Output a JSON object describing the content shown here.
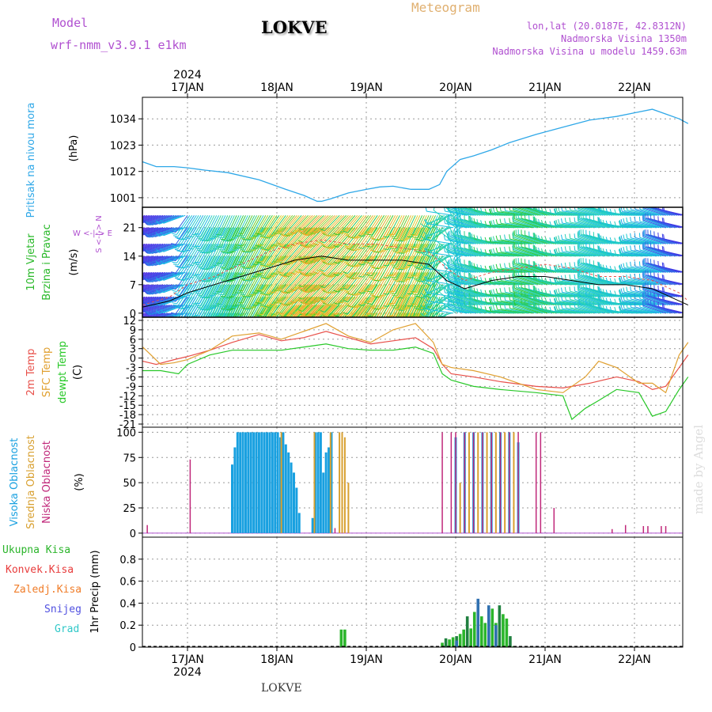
{
  "header": {
    "model_label": "Model",
    "model_name": "wrf-nmm_v3.9.1 e1km",
    "station": "LOKVE",
    "meteogram": "Meteogram",
    "lonlat": "lon,lat (20.0187E, 42.8312N)",
    "altitude": "Nadmorska Visina 1350m",
    "model_altitude": "Nadmorska Visina u modelu 1459.63m",
    "footer_station": "LOKVE",
    "watermark": "made by Angel",
    "top_year": "2024",
    "bottom_year": "2024",
    "day_labels": [
      "17JAN",
      "18JAN",
      "19JAN",
      "20JAN",
      "21JAN",
      "22JAN"
    ]
  },
  "colors": {
    "pressure": "#2fa8e8",
    "temp2m": "#e8504a",
    "sfc_temp": "#e0a030",
    "dewpoint": "#28c828",
    "high_cloud": "#18a0e0",
    "mid_cloud": "#d8a030",
    "low_cloud": "#c0287a",
    "total_precip": "#2bb52b",
    "conv_precip": "#e83c3c",
    "frozen_precip": "#f07c28",
    "snow": "#5050e0",
    "graupel": "#30c8c8",
    "label_purple": "#b050d0",
    "meteogram_label": "#e0b070"
  },
  "chart_data": [
    {
      "type": "line",
      "panel": "pressure",
      "ylabel_1": "Pritisak na nivou mora",
      "ylabel_2": "(hPa)",
      "yticks": [
        1001,
        1012,
        1023,
        1034
      ],
      "ylim": [
        997,
        1043
      ],
      "x_unit": "days from 17JAN 00 UTC",
      "series": [
        {
          "x": [
            -0.5,
            -0.35,
            -0.15,
            0.0,
            0.2,
            0.45,
            0.8,
            1.1,
            1.3,
            1.45,
            1.5,
            1.6,
            1.8,
            2.0,
            2.15,
            2.3,
            2.5,
            2.7,
            2.82,
            2.9,
            3.05,
            3.2,
            3.4,
            3.6,
            3.9,
            4.2,
            4.5,
            4.8,
            5.0,
            5.2,
            5.35,
            5.5,
            5.6
          ],
          "values": [
            1016,
            1014,
            1014,
            1013.5,
            1012.5,
            1011.5,
            1008.5,
            1004.5,
            1002,
            999.5,
            999.5,
            1000.5,
            1003,
            1004.5,
            1005.5,
            1005.8,
            1004.5,
            1004.5,
            1006.5,
            1012,
            1017,
            1018.5,
            1021,
            1024,
            1027.5,
            1030.5,
            1033.5,
            1035,
            1036.5,
            1038,
            1036,
            1034,
            1032
          ]
        }
      ]
    },
    {
      "type": "line",
      "panel": "wind",
      "ylabel_1": "10m Vjetar",
      "ylabel_2": "Brzina i Pravac",
      "ylabel_3": "(m/s)",
      "compass": "W <-|-> E",
      "compass_ns": "S <-|-> N",
      "yticks": [
        0,
        7,
        14,
        21
      ],
      "ylim": [
        -1,
        26
      ],
      "barb_rows": [
        0,
        7,
        14,
        21
      ],
      "series": [
        {
          "name": "speed",
          "x": [
            -0.5,
            -0.2,
            0.0,
            0.3,
            0.6,
            0.9,
            1.2,
            1.5,
            1.8,
            2.1,
            2.4,
            2.7,
            2.9,
            3.1,
            3.4,
            3.7,
            4.0,
            4.3,
            4.6,
            4.9,
            5.2,
            5.5,
            5.6
          ],
          "values": [
            1.5,
            3,
            5,
            7,
            9,
            11,
            13,
            14,
            13,
            13,
            13,
            12,
            8,
            6,
            8,
            9,
            9,
            8,
            7,
            7,
            6,
            3,
            2
          ]
        },
        {
          "name": "gust",
          "x": [
            -0.5,
            -0.2,
            0.0,
            0.3,
            0.6,
            0.9,
            1.2,
            1.5,
            1.8,
            2.1,
            2.4,
            2.7,
            2.9,
            3.1,
            3.4,
            3.7,
            4.0,
            4.3,
            4.6,
            4.9,
            5.2,
            5.5,
            5.6
          ],
          "values": [
            2,
            4,
            7,
            9,
            12,
            15,
            17,
            18,
            17,
            17,
            16,
            15,
            11,
            8,
            10,
            11,
            12,
            11,
            9,
            9,
            8,
            5,
            3
          ]
        }
      ]
    },
    {
      "type": "line",
      "panel": "temperature",
      "ylabel_1": "2m Temp",
      "ylabel_2": "SFC Temp",
      "ylabel_3": "dewpt Temp",
      "ylabel_4": "(C)",
      "yticks": [
        12,
        9,
        6,
        3,
        0,
        -3,
        -6,
        -9,
        -12,
        -15,
        -18,
        -21
      ],
      "ylim": [
        -22,
        13
      ],
      "series": [
        {
          "name": "2m Temp",
          "x": [
            -0.5,
            -0.35,
            -0.15,
            0.0,
            0.25,
            0.5,
            0.8,
            1.05,
            1.3,
            1.55,
            1.8,
            2.05,
            2.3,
            2.55,
            2.75,
            2.85,
            2.95,
            3.2,
            3.5,
            3.9,
            4.2,
            4.5,
            4.8,
            5.05,
            5.2,
            5.35,
            5.5,
            5.6
          ],
          "values": [
            -1,
            -2,
            -0.5,
            0.5,
            2.5,
            5,
            7.5,
            5.5,
            6.5,
            8.5,
            6.5,
            4.5,
            5.5,
            6.5,
            3,
            -2,
            -5,
            -6,
            -7.5,
            -9,
            -9.5,
            -8,
            -6,
            -7.5,
            -10,
            -9,
            -3,
            1
          ]
        },
        {
          "name": "SFC Temp",
          "x": [
            -0.5,
            -0.3,
            -0.15,
            0.0,
            0.25,
            0.5,
            0.8,
            1.05,
            1.3,
            1.55,
            1.8,
            2.05,
            2.3,
            2.55,
            2.75,
            2.85,
            2.95,
            3.2,
            3.5,
            3.9,
            4.2,
            4.45,
            4.6,
            4.8,
            5.05,
            5.2,
            5.35,
            5.5,
            5.6
          ],
          "values": [
            3.5,
            -2,
            -1.5,
            -0.5,
            2.5,
            7,
            8,
            6,
            8.5,
            11,
            7,
            5,
            9,
            11,
            5,
            -2,
            -3,
            -4,
            -6,
            -10,
            -11,
            -6,
            -1,
            -3,
            -8,
            -8,
            -11,
            1,
            5
          ]
        },
        {
          "name": "dewpt Temp",
          "x": [
            -0.5,
            -0.3,
            -0.1,
            0.0,
            0.25,
            0.5,
            0.8,
            1.05,
            1.3,
            1.55,
            1.8,
            2.05,
            2.3,
            2.55,
            2.75,
            2.85,
            2.95,
            3.2,
            3.5,
            3.9,
            4.2,
            4.3,
            4.45,
            4.6,
            4.8,
            5.05,
            5.2,
            5.35,
            5.5,
            5.6
          ],
          "values": [
            -4,
            -4,
            -5,
            -2,
            1,
            2.5,
            2.5,
            2.5,
            3.5,
            4.5,
            3,
            2.5,
            2.5,
            3.5,
            1.5,
            -5,
            -7,
            -9,
            -10,
            -11,
            -12,
            -19.5,
            -16,
            -13.5,
            -10,
            -11,
            -18.5,
            -17,
            -10,
            -6
          ]
        }
      ]
    },
    {
      "type": "bar",
      "panel": "clouds",
      "ylabel_1": "Visoka Oblacnost",
      "ylabel_2": "Srednja Oblacnost",
      "ylabel_3": "Niska Oblacnost",
      "ylabel_4": "(%)",
      "yticks": [
        0,
        25,
        50,
        75,
        100
      ],
      "ylim": [
        -4,
        105
      ],
      "series": [
        {
          "name": "Visoka Oblacnost",
          "x": [
            0.5,
            0.53,
            0.56,
            0.59,
            0.62,
            0.65,
            0.68,
            0.71,
            0.74,
            0.77,
            0.8,
            0.83,
            0.86,
            0.89,
            0.92,
            0.95,
            0.98,
            1.01,
            1.04,
            1.07,
            1.1,
            1.13,
            1.16,
            1.19,
            1.22,
            1.25,
            1.4,
            1.43,
            1.46,
            1.49,
            1.52,
            1.55,
            1.58,
            1.61,
            3.0,
            3.1,
            3.2,
            3.3,
            3.4,
            3.5,
            3.6,
            3.7
          ],
          "values": [
            68,
            85,
            100,
            100,
            100,
            100,
            100,
            100,
            100,
            100,
            100,
            100,
            100,
            100,
            100,
            100,
            100,
            100,
            95,
            100,
            88,
            80,
            70,
            60,
            45,
            20,
            15,
            100,
            100,
            100,
            60,
            80,
            85,
            100,
            95,
            100,
            100,
            100,
            100,
            100,
            100,
            90
          ]
        },
        {
          "name": "Srednja Oblacnost",
          "x": [
            1.05,
            1.42,
            1.6,
            1.7,
            1.73,
            1.76,
            1.8,
            3.05,
            3.15,
            3.25,
            3.35,
            3.45,
            3.55,
            3.65
          ],
          "values": [
            100,
            100,
            100,
            100,
            100,
            95,
            50,
            50,
            100,
            100,
            100,
            100,
            100,
            100
          ]
        },
        {
          "name": "Niska Oblacnost",
          "x": [
            -0.45,
            0.03,
            1.65,
            2.85,
            2.95,
            3.0,
            3.1,
            3.2,
            3.3,
            3.4,
            3.5,
            3.6,
            3.7,
            3.9,
            3.95,
            4.1,
            4.75,
            4.9,
            5.1,
            5.15,
            5.3,
            5.35
          ],
          "values": [
            8,
            73,
            5,
            100,
            100,
            100,
            100,
            100,
            100,
            100,
            100,
            100,
            100,
            100,
            100,
            25,
            4,
            8,
            7,
            7,
            7,
            7
          ]
        }
      ]
    },
    {
      "type": "bar",
      "panel": "precipitation",
      "legend": [
        "Ukupna Kisa",
        "Konvek.Kisa",
        "Zaledj.Kisa",
        "Snijeg",
        "Grad"
      ],
      "ylabel": "1hr Precip (mm)",
      "yticks": [
        0,
        0.2,
        0.4,
        0.6,
        0.8
      ],
      "ylim": [
        0,
        1.0
      ],
      "series": [
        {
          "name": "Ukupna Kisa",
          "x": [
            1.72,
            1.76,
            2.85,
            2.89,
            2.93,
            2.97,
            3.01,
            3.05,
            3.09,
            3.13,
            3.17,
            3.21,
            3.25,
            3.29,
            3.33,
            3.37,
            3.41,
            3.45,
            3.49,
            3.53,
            3.57,
            3.61,
            3.65
          ],
          "values": [
            0.16,
            0.16,
            0.04,
            0.08,
            0.07,
            0.09,
            0.1,
            0.12,
            0.16,
            0.28,
            0.17,
            0.32,
            0.2,
            0.28,
            0.22,
            0.25,
            0.35,
            0.22,
            0.38,
            0.3,
            0.26,
            0.1,
            0.01
          ]
        },
        {
          "name": "Snijeg",
          "x": [
            3.01,
            3.25,
            3.37,
            3.45
          ],
          "values": [
            0.06,
            0.44,
            0.38,
            0.2
          ]
        }
      ]
    }
  ]
}
